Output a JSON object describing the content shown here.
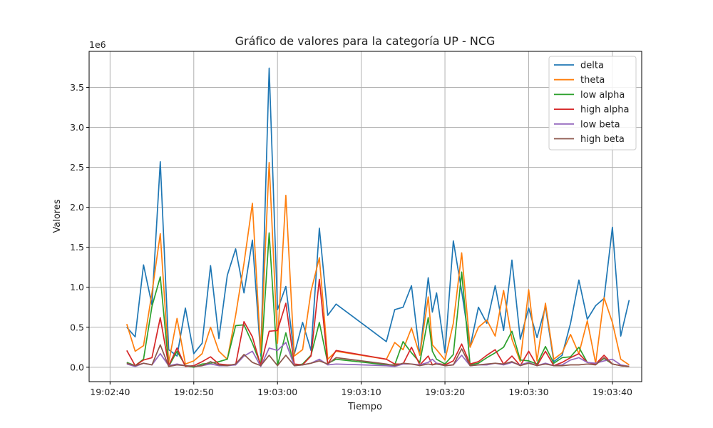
{
  "chart_data": {
    "type": "line",
    "title": "Gráfico de valores para la categoría UP - NCG",
    "xlabel": "Tiempo",
    "ylabel": "Valores",
    "y_multiplier_label": "1e6",
    "y_scale": 1000000,
    "ylim": [
      -0.18,
      3.95
    ],
    "xlim_seconds": [
      -2.5,
      63.5
    ],
    "x_origin_time": "19:02:40",
    "x_ticks": [
      {
        "t": 0,
        "label": "19:02:40"
      },
      {
        "t": 10,
        "label": "19:02:50"
      },
      {
        "t": 20,
        "label": "19:03:00"
      },
      {
        "t": 30,
        "label": "19:03:10"
      },
      {
        "t": 40,
        "label": "19:03:20"
      },
      {
        "t": 50,
        "label": "19:03:30"
      },
      {
        "t": 60,
        "label": "19:03:40"
      }
    ],
    "y_ticks": [
      {
        "v": 0.0,
        "label": "0.0"
      },
      {
        "v": 0.5,
        "label": "0.5"
      },
      {
        "v": 1.0,
        "label": "1.0"
      },
      {
        "v": 1.5,
        "label": "1.5"
      },
      {
        "v": 2.0,
        "label": "2.0"
      },
      {
        "v": 2.5,
        "label": "2.5"
      },
      {
        "v": 3.0,
        "label": "3.0"
      },
      {
        "v": 3.5,
        "label": "3.5"
      }
    ],
    "grid": true,
    "legend_position": "top-right",
    "x": [
      "19:02:42",
      "19:02:43",
      "19:02:44",
      "19:02:45",
      "19:02:46",
      "19:02:47",
      "19:02:48",
      "19:02:49",
      "19:02:50",
      "19:02:51",
      "19:02:52",
      "19:02:53",
      "19:02:54",
      "19:02:55",
      "19:02:56",
      "19:02:57",
      "19:02:58",
      "19:02:59",
      "19:03:00",
      "19:03:01",
      "19:03:02",
      "19:03:03",
      "19:03:04",
      "19:03:05",
      "19:03:06",
      "19:03:07",
      "19:03:13",
      "19:03:14",
      "19:03:15",
      "19:03:16",
      "19:03:17",
      "19:03:18",
      "19:03:18.5",
      "19:03:19",
      "19:03:20",
      "19:03:21",
      "19:03:22",
      "19:03:23",
      "19:03:24",
      "19:03:25",
      "19:03:26",
      "19:03:27",
      "19:03:28",
      "19:03:29",
      "19:03:30",
      "19:03:31",
      "19:03:32",
      "19:03:33",
      "19:03:34",
      "19:03:35",
      "19:03:36",
      "19:03:37",
      "19:03:38",
      "19:03:39",
      "19:03:40",
      "19:03:41",
      "19:03:42"
    ],
    "series": [
      {
        "name": "delta",
        "color": "#1f77b4",
        "values": [
          0.5,
          0.38,
          1.28,
          0.78,
          2.57,
          0.22,
          0.14,
          0.74,
          0.17,
          0.3,
          1.27,
          0.36,
          1.15,
          1.48,
          0.93,
          1.59,
          0.14,
          3.74,
          0.72,
          1.01,
          0.16,
          0.56,
          0.21,
          1.74,
          0.65,
          0.79,
          0.32,
          0.72,
          0.75,
          1.02,
          0.15,
          1.12,
          0.69,
          0.93,
          0.18,
          1.58,
          0.95,
          0.25,
          0.75,
          0.55,
          1.02,
          0.46,
          1.34,
          0.35,
          0.74,
          0.37,
          0.76,
          0.07,
          0.15,
          0.55,
          1.09,
          0.6,
          0.77,
          0.86,
          1.75,
          0.39,
          0.84
        ]
      },
      {
        "name": "theta",
        "color": "#ff7f0e",
        "values": [
          0.54,
          0.2,
          0.27,
          0.93,
          1.67,
          0.06,
          0.61,
          0.04,
          0.08,
          0.17,
          0.5,
          0.2,
          0.1,
          0.65,
          1.3,
          2.05,
          0.18,
          2.56,
          0.3,
          2.15,
          0.14,
          0.22,
          0.95,
          1.37,
          0.1,
          0.2,
          0.1,
          0.31,
          0.22,
          0.49,
          0.15,
          0.88,
          0.28,
          0.22,
          0.09,
          0.55,
          1.43,
          0.25,
          0.5,
          0.59,
          0.39,
          0.96,
          0.35,
          0.07,
          0.97,
          0.08,
          0.8,
          0.1,
          0.18,
          0.41,
          0.17,
          0.58,
          0.05,
          0.87,
          0.56,
          0.1,
          0.03
        ]
      },
      {
        "name": "low alpha",
        "color": "#2ca02c",
        "values": [
          0.06,
          0.02,
          0.1,
          0.76,
          1.13,
          0.01,
          0.2,
          0.02,
          0.0,
          0.04,
          0.05,
          0.07,
          0.1,
          0.52,
          0.53,
          0.3,
          0.03,
          1.68,
          0.02,
          0.43,
          0.02,
          0.04,
          0.15,
          0.56,
          0.05,
          0.1,
          0.03,
          0.03,
          0.32,
          0.18,
          0.06,
          0.62,
          0.2,
          0.1,
          0.04,
          0.16,
          1.19,
          0.03,
          0.05,
          0.12,
          0.18,
          0.25,
          0.45,
          0.09,
          0.08,
          0.04,
          0.26,
          0.05,
          0.12,
          0.13,
          0.25,
          0.06,
          0.04,
          0.11,
          0.04,
          0.02,
          0.01
        ]
      },
      {
        "name": "high alpha",
        "color": "#d62728",
        "values": [
          0.21,
          0.02,
          0.09,
          0.12,
          0.62,
          0.02,
          0.24,
          0.01,
          0.02,
          0.07,
          0.13,
          0.04,
          0.03,
          0.03,
          0.57,
          0.38,
          0.02,
          0.45,
          0.46,
          0.8,
          0.04,
          0.03,
          0.14,
          1.1,
          0.04,
          0.21,
          0.1,
          0.04,
          0.04,
          0.25,
          0.03,
          0.14,
          0.03,
          0.05,
          0.03,
          0.08,
          0.29,
          0.04,
          0.07,
          0.15,
          0.22,
          0.04,
          0.14,
          0.02,
          0.2,
          0.02,
          0.2,
          0.02,
          0.06,
          0.12,
          0.17,
          0.06,
          0.04,
          0.15,
          0.04,
          0.02,
          0.01
        ]
      },
      {
        "name": "low beta",
        "color": "#9467bd",
        "values": [
          0.04,
          0.01,
          0.05,
          0.03,
          0.17,
          0.02,
          0.04,
          0.02,
          0.01,
          0.02,
          0.04,
          0.02,
          0.02,
          0.03,
          0.14,
          0.2,
          0.01,
          0.24,
          0.21,
          0.31,
          0.02,
          0.03,
          0.05,
          0.1,
          0.03,
          0.04,
          0.02,
          0.01,
          0.04,
          0.04,
          0.03,
          0.06,
          0.1,
          0.05,
          0.02,
          0.03,
          0.15,
          0.02,
          0.03,
          0.03,
          0.05,
          0.03,
          0.06,
          0.03,
          0.06,
          0.02,
          0.05,
          0.02,
          0.03,
          0.09,
          0.12,
          0.06,
          0.05,
          0.08,
          0.1,
          0.03,
          0.01
        ]
      },
      {
        "name": "high beta",
        "color": "#8c564b",
        "values": [
          0.05,
          0.02,
          0.05,
          0.03,
          0.28,
          0.01,
          0.03,
          0.02,
          0.01,
          0.02,
          0.07,
          0.03,
          0.02,
          0.04,
          0.16,
          0.06,
          0.02,
          0.15,
          0.02,
          0.15,
          0.02,
          0.03,
          0.05,
          0.08,
          0.04,
          0.12,
          0.04,
          0.02,
          0.05,
          0.04,
          0.02,
          0.04,
          0.03,
          0.04,
          0.02,
          0.03,
          0.23,
          0.02,
          0.03,
          0.04,
          0.05,
          0.04,
          0.07,
          0.02,
          0.05,
          0.02,
          0.04,
          0.02,
          0.02,
          0.03,
          0.03,
          0.04,
          0.03,
          0.12,
          0.04,
          0.02,
          0.01
        ]
      }
    ]
  }
}
